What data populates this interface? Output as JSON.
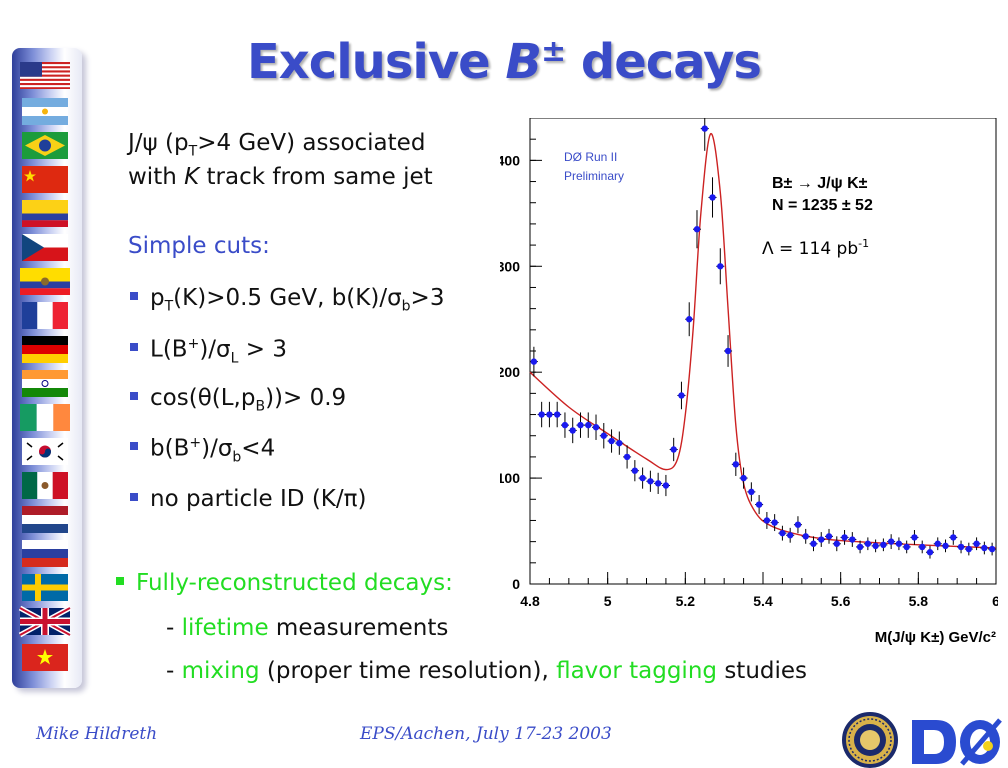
{
  "title": {
    "prefix": "Exclusive ",
    "particle": "B",
    "charge": "±",
    "suffix": " decays"
  },
  "intro": {
    "line1_a": "J/",
    "line1_psi": "ψ",
    "line1_b": " (p",
    "line1_sub": "T",
    "line1_c": ">4 GeV) associated",
    "line2_a": "with ",
    "line2_k": "K",
    "line2_b": " track from same jet"
  },
  "cuts_heading": "Simple cuts:",
  "cuts": [
    {
      "parts": [
        "p",
        "T",
        "(K)>0.5 GeV, b(K)/",
        "σ",
        "b",
        ">3"
      ]
    },
    {
      "parts": [
        "L(B",
        "+",
        ")/",
        "σ",
        "L",
        " > 3"
      ]
    },
    {
      "parts": [
        "cos(",
        "θ",
        "(L,p",
        "B",
        "))> 0.9"
      ]
    },
    {
      "parts": [
        "b(B",
        "+",
        ")/",
        "σ",
        "b",
        "<4"
      ]
    },
    {
      "parts": [
        "no particle ID (K/",
        "π",
        ")"
      ]
    }
  ],
  "bottom": {
    "heading": "Fully-reconstructed decays:",
    "line1_dash": "- ",
    "line1_green": "lifetime",
    "line1_rest": " measurements",
    "line2_dash": "- ",
    "line2_green1": "mixing",
    "line2_mid": " (proper time resolution), ",
    "line2_green2": "flavor tagging",
    "line2_rest": " studies"
  },
  "footer": {
    "author": "Mike Hildreth",
    "conference": "EPS/Aachen, July 17-23 2003"
  },
  "flags": [
    "usa",
    "argentina",
    "brazil",
    "china",
    "colombia",
    "czech",
    "ecuador",
    "france",
    "germany",
    "india",
    "ireland",
    "korea",
    "mexico",
    "netherlands",
    "russia",
    "sweden",
    "uk",
    "vietnam"
  ],
  "colors": {
    "accent": "#3a4cc8",
    "highlight": "#22dd22",
    "points": "#1a1aee",
    "fit": "#cc2222"
  },
  "chart_data": {
    "type": "scatter",
    "experiment_label_1": "DØ Run II",
    "experiment_label_2": "Preliminary",
    "decay_label": "B± → J/ψ K±",
    "yield_label": "N =  1235 ± 52",
    "lumi_label": "Λ = 114 pb",
    "lumi_sup": "-1",
    "xlabel": "M(J/ψ K±) GeV/c²",
    "xlim": [
      4.8,
      6.0
    ],
    "ylim": [
      0,
      440
    ],
    "xticks": [
      "4.8",
      "5",
      "5.2",
      "5.4",
      "5.6",
      "5.8",
      "6"
    ],
    "yticks": [
      "0",
      "100",
      "200",
      "300",
      "400"
    ],
    "x": [
      4.81,
      4.83,
      4.85,
      4.87,
      4.89,
      4.91,
      4.93,
      4.95,
      4.97,
      4.99,
      5.01,
      5.03,
      5.05,
      5.07,
      5.09,
      5.11,
      5.13,
      5.15,
      5.17,
      5.19,
      5.21,
      5.23,
      5.25,
      5.27,
      5.29,
      5.31,
      5.33,
      5.35,
      5.37,
      5.39,
      5.41,
      5.43,
      5.45,
      5.47,
      5.49,
      5.51,
      5.53,
      5.55,
      5.57,
      5.59,
      5.61,
      5.63,
      5.65,
      5.67,
      5.69,
      5.71,
      5.73,
      5.75,
      5.77,
      5.79,
      5.81,
      5.83,
      5.85,
      5.87,
      5.89,
      5.91,
      5.93,
      5.95,
      5.97,
      5.99
    ],
    "y": [
      210,
      160,
      160,
      160,
      150,
      145,
      150,
      150,
      148,
      140,
      135,
      133,
      120,
      107,
      100,
      97,
      95,
      93,
      127,
      178,
      250,
      335,
      430,
      365,
      300,
      220,
      113,
      100,
      87,
      75,
      60,
      58,
      48,
      46,
      56,
      45,
      38,
      42,
      45,
      38,
      44,
      42,
      35,
      38,
      36,
      37,
      40,
      38,
      35,
      44,
      35,
      30,
      38,
      36,
      44,
      35,
      33,
      38,
      34,
      33
    ],
    "err": [
      14,
      12,
      12,
      12,
      12,
      12,
      12,
      12,
      12,
      12,
      11,
      11,
      11,
      10,
      10,
      10,
      10,
      10,
      11,
      13,
      16,
      18,
      21,
      19,
      17,
      15,
      11,
      10,
      9,
      9,
      8,
      8,
      7,
      7,
      8,
      7,
      7,
      7,
      7,
      7,
      7,
      7,
      6,
      6,
      6,
      6,
      7,
      6,
      6,
      7,
      6,
      6,
      6,
      6,
      7,
      6,
      6,
      6,
      6,
      6
    ],
    "fit_curve": [
      [
        4.8,
        200
      ],
      [
        4.9,
        167
      ],
      [
        5.0,
        142
      ],
      [
        5.1,
        118
      ],
      [
        5.15,
        108
      ],
      [
        5.18,
        118
      ],
      [
        5.2,
        160
      ],
      [
        5.22,
        240
      ],
      [
        5.24,
        350
      ],
      [
        5.265,
        425
      ],
      [
        5.29,
        370
      ],
      [
        5.31,
        260
      ],
      [
        5.33,
        150
      ],
      [
        5.35,
        95
      ],
      [
        5.38,
        68
      ],
      [
        5.42,
        55
      ],
      [
        5.5,
        46
      ],
      [
        5.6,
        41
      ],
      [
        5.8,
        37
      ],
      [
        6.0,
        34
      ]
    ]
  }
}
